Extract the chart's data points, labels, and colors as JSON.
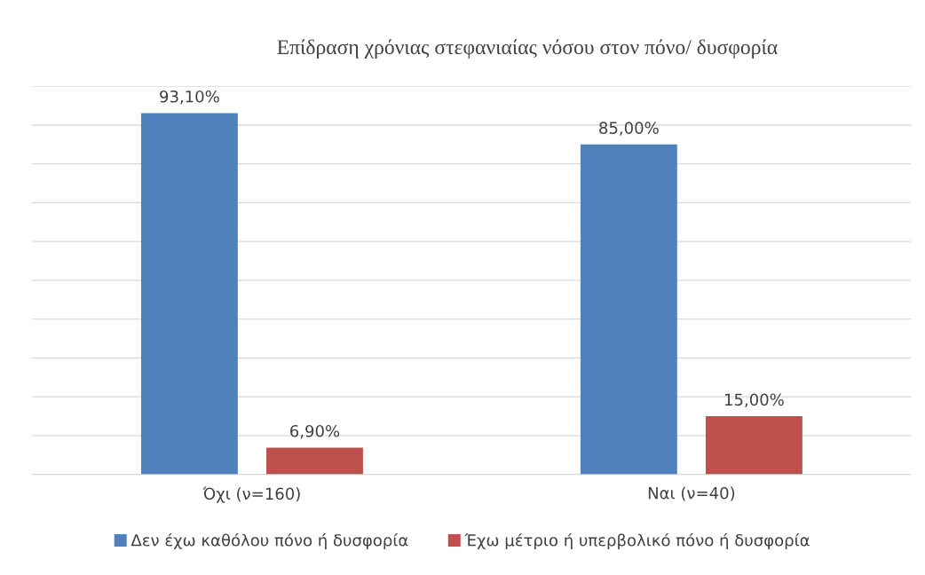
{
  "chart_data": {
    "type": "bar",
    "title": "Επίδραση χρόνιας στεφανιαίας νόσου στον πόνο/ δυσφορία",
    "categories": [
      "Όχι (ν=160)",
      "Ναι (ν=40)"
    ],
    "series": [
      {
        "name": "Δεν έχω καθόλου πόνο ή δυσφορία",
        "color": "#4f81bd",
        "values": [
          93.1,
          85.0
        ],
        "value_labels": [
          "93,10%",
          "85,00%"
        ]
      },
      {
        "name": "Έχω μέτριο ή υπερβολικό πόνο ή δυσφορία",
        "color": "#c0504d",
        "values": [
          6.9,
          15.0
        ],
        "value_labels": [
          "6,90%",
          "15,00%"
        ]
      }
    ],
    "ylim": [
      0,
      100
    ],
    "yticks": [
      {
        "value": 0,
        "label": null
      },
      {
        "value": 10,
        "label": null
      },
      {
        "value": 20,
        "label": null
      },
      {
        "value": 30,
        "label": null
      },
      {
        "value": 40,
        "label": null
      },
      {
        "value": 50,
        "label": null
      },
      {
        "value": 60,
        "label": null
      },
      {
        "value": 70,
        "label": null
      },
      {
        "value": 80,
        "label": null
      },
      {
        "value": 90,
        "label": null
      },
      {
        "value": 100,
        "label": null
      }
    ],
    "grid": "y",
    "legend": "bottom",
    "tick_labels": "x"
  }
}
